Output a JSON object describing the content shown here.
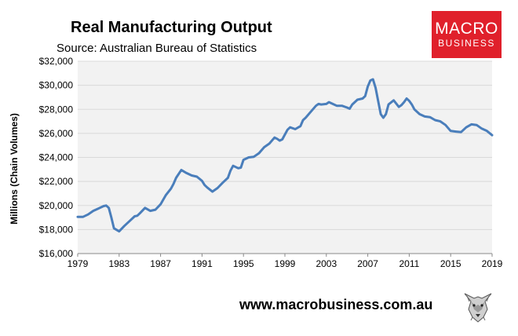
{
  "header": {
    "title": "Real Manufacturing Output",
    "source": "Source: Australian Bureau of Statistics"
  },
  "logo": {
    "line1": "MACRO",
    "line2": "BUSINESS",
    "color": "#e0202b"
  },
  "footer": {
    "website": "www.macrobusiness.com.au"
  },
  "chart_data": {
    "type": "line",
    "title": "Real Manufacturing Output",
    "subtitle": "Source: Australian Bureau of Statistics",
    "ylabel": "Millions (Chain Volumes)",
    "xlabel": "",
    "xlim": [
      1979,
      2019
    ],
    "ylim": [
      16000,
      32000
    ],
    "x_ticks": [
      1979,
      1983,
      1987,
      1991,
      1995,
      1999,
      2003,
      2007,
      2011,
      2015,
      2019
    ],
    "y_ticks": [
      "$16,000",
      "$18,000",
      "$20,000",
      "$22,000",
      "$24,000",
      "$26,000",
      "$28,000",
      "$30,000",
      "$32,000"
    ],
    "y_tick_values": [
      16000,
      18000,
      20000,
      22000,
      24000,
      26000,
      28000,
      30000,
      32000
    ],
    "grid": "horizontal",
    "legend": "none",
    "line_color": "#4a7ebb",
    "plot_background": "#f2f2f2",
    "series": [
      {
        "x": [
          1979.0,
          1979.5,
          1980.0,
          1980.5,
          1981.0,
          1981.5,
          1981.75,
          1982.0,
          1982.25,
          1982.5,
          1983.0,
          1983.5,
          1984.0,
          1984.5,
          1984.75,
          1985.0,
          1985.5,
          1986.0,
          1986.5,
          1987.0,
          1987.5,
          1988.0,
          1988.25,
          1988.5,
          1989.0,
          1989.5,
          1990.0,
          1990.5,
          1991.0,
          1991.25,
          1991.5,
          1992.0,
          1992.5,
          1993.0,
          1993.5,
          1993.75,
          1994.0,
          1994.5,
          1994.75,
          1995.0,
          1995.5,
          1996.0,
          1996.5,
          1997.0,
          1997.5,
          1998.0,
          1998.25,
          1998.5,
          1998.75,
          1999.0,
          1999.25,
          1999.5,
          2000.0,
          2000.5,
          2000.75,
          2001.0,
          2001.5,
          2002.0,
          2002.25,
          2002.5,
          2003.0,
          2003.25,
          2003.5,
          2004.0,
          2004.5,
          2005.0,
          2005.25,
          2005.5,
          2006.0,
          2006.5,
          2006.75,
          2007.0,
          2007.25,
          2007.5,
          2007.75,
          2008.0,
          2008.25,
          2008.5,
          2008.75,
          2009.0,
          2009.5,
          2010.0,
          2010.25,
          2010.5,
          2010.75,
          2011.0,
          2011.25,
          2011.5,
          2012.0,
          2012.5,
          2013.0,
          2013.5,
          2014.0,
          2014.5,
          2015.0,
          2015.5,
          2016.0,
          2016.5,
          2017.0,
          2017.5,
          2018.0,
          2018.5,
          2019.0
        ],
        "values": [
          19050,
          19050,
          19250,
          19550,
          19750,
          19950,
          20000,
          19800,
          19000,
          18100,
          17850,
          18300,
          18700,
          19100,
          19150,
          19350,
          19800,
          19550,
          19650,
          20100,
          20850,
          21400,
          21800,
          22300,
          22950,
          22700,
          22500,
          22400,
          22050,
          21700,
          21500,
          21150,
          21450,
          21900,
          22300,
          22900,
          23300,
          23100,
          23150,
          23800,
          24000,
          24050,
          24350,
          24850,
          25150,
          25650,
          25550,
          25400,
          25500,
          25900,
          26300,
          26500,
          26350,
          26600,
          27100,
          27300,
          27800,
          28300,
          28450,
          28400,
          28450,
          28600,
          28500,
          28300,
          28300,
          28150,
          28050,
          28400,
          28800,
          28900,
          29100,
          29900,
          30400,
          30500,
          29800,
          28700,
          27600,
          27300,
          27600,
          28400,
          28750,
          28200,
          28350,
          28600,
          28900,
          28700,
          28400,
          28000,
          27600,
          27400,
          27350,
          27100,
          27000,
          26700,
          26200,
          26150,
          26100,
          26500,
          26750,
          26700,
          26400,
          26200,
          25850
        ]
      }
    ]
  }
}
